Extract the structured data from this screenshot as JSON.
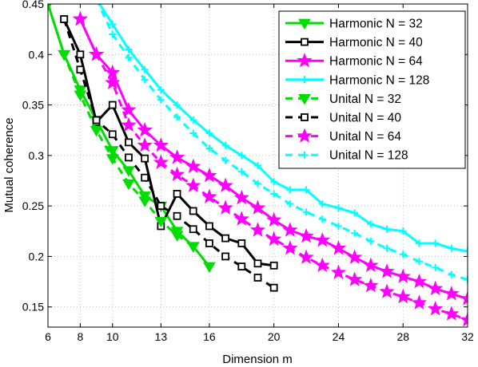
{
  "chart_data": {
    "type": "line",
    "title": "",
    "xlabel": "Dimension m",
    "ylabel": "Mutual coherence",
    "xlim": [
      6,
      32
    ],
    "ylim": [
      0.13,
      0.45
    ],
    "xticks": [
      6,
      8,
      10,
      13,
      16,
      20,
      24,
      28,
      32
    ],
    "yticks": [
      0.15,
      0.2,
      0.25,
      0.3,
      0.35,
      0.4,
      0.45
    ],
    "grid": true,
    "legend_position": "top-right",
    "series": [
      {
        "name": "Harmonic N = 32",
        "color": "#00dd00",
        "dash": "solid",
        "marker": "triangle-down",
        "x": [
          6,
          7,
          8,
          9,
          10,
          11,
          12,
          13,
          14,
          15,
          16
        ],
        "y": [
          0.45,
          0.4,
          0.365,
          0.335,
          0.305,
          0.285,
          0.26,
          0.25,
          0.225,
          0.21,
          0.19
        ]
      },
      {
        "name": "Harmonic N = 40",
        "color": "#000000",
        "dash": "solid",
        "marker": "square",
        "x": [
          7,
          8,
          9,
          10,
          11,
          12,
          13,
          14,
          15,
          16,
          17,
          18,
          19,
          20
        ],
        "y": [
          0.435,
          0.4,
          0.333,
          0.35,
          0.313,
          0.297,
          0.23,
          0.262,
          0.245,
          0.23,
          0.218,
          0.213,
          0.193,
          0.191
        ]
      },
      {
        "name": "Harmonic N = 64",
        "color": "#ff00ff",
        "dash": "solid",
        "marker": "star",
        "x": [
          8,
          9,
          10,
          11,
          12,
          13,
          14,
          15,
          16,
          17,
          18,
          19,
          20,
          21,
          22,
          23,
          24,
          25,
          26,
          27,
          28,
          29,
          30,
          31,
          32
        ],
        "y": [
          0.435,
          0.4,
          0.382,
          0.345,
          0.325,
          0.31,
          0.298,
          0.289,
          0.28,
          0.27,
          0.258,
          0.248,
          0.236,
          0.226,
          0.22,
          0.216,
          0.208,
          0.199,
          0.191,
          0.185,
          0.18,
          0.175,
          0.168,
          0.163,
          0.158
        ]
      },
      {
        "name": "Harmonic N = 128",
        "color": "#00ffff",
        "dash": "solid",
        "marker": "plus",
        "x": [
          9,
          10,
          11,
          12,
          13,
          14,
          15,
          16,
          17,
          18,
          19,
          20,
          21,
          22,
          23,
          24,
          25,
          26,
          27,
          28,
          29,
          30,
          31,
          32
        ],
        "y": [
          0.455,
          0.43,
          0.405,
          0.385,
          0.365,
          0.35,
          0.335,
          0.322,
          0.31,
          0.3,
          0.29,
          0.274,
          0.266,
          0.266,
          0.252,
          0.248,
          0.243,
          0.232,
          0.227,
          0.225,
          0.213,
          0.213,
          0.208,
          0.205
        ]
      },
      {
        "name": "Unital N = 32",
        "color": "#00dd00",
        "dash": "dashed",
        "marker": "triangle-down",
        "x": [
          6,
          7,
          8,
          9,
          10,
          11,
          12,
          13,
          14,
          15
        ],
        "y": [
          0.45,
          0.4,
          0.36,
          0.325,
          0.297,
          0.272,
          0.255,
          0.235,
          0.221,
          0.21
        ]
      },
      {
        "name": "Unital N = 40",
        "color": "#000000",
        "dash": "dashed",
        "marker": "square",
        "x": [
          7,
          8,
          9,
          10,
          11,
          12,
          13,
          14,
          15,
          16,
          17,
          18,
          19,
          20
        ],
        "y": [
          0.435,
          0.385,
          0.335,
          0.321,
          0.298,
          0.278,
          0.25,
          0.24,
          0.227,
          0.213,
          0.2,
          0.19,
          0.179,
          0.169
        ]
      },
      {
        "name": "Unital N = 64",
        "color": "#ff00ff",
        "dash": "dashed",
        "marker": "star",
        "x": [
          8,
          9,
          10,
          11,
          12,
          13,
          14,
          15,
          16,
          17,
          18,
          19,
          20,
          21,
          22,
          23,
          24,
          25,
          26,
          27,
          28,
          29,
          30,
          31,
          32
        ],
        "y": [
          0.435,
          0.4,
          0.372,
          0.33,
          0.31,
          0.293,
          0.281,
          0.27,
          0.259,
          0.248,
          0.237,
          0.226,
          0.217,
          0.208,
          0.199,
          0.191,
          0.184,
          0.177,
          0.171,
          0.165,
          0.16,
          0.154,
          0.148,
          0.143,
          0.137
        ]
      },
      {
        "name": "Unital N = 128",
        "color": "#00ffff",
        "dash": "dashed",
        "marker": "plus",
        "x": [
          9,
          10,
          11,
          12,
          13,
          14,
          15,
          16,
          17,
          18,
          19,
          20,
          21,
          22,
          23,
          24,
          25,
          26,
          27,
          28,
          29,
          30,
          31,
          32
        ],
        "y": [
          0.455,
          0.42,
          0.397,
          0.375,
          0.355,
          0.338,
          0.322,
          0.307,
          0.295,
          0.284,
          0.272,
          0.262,
          0.252,
          0.244,
          0.237,
          0.23,
          0.223,
          0.215,
          0.208,
          0.202,
          0.195,
          0.189,
          0.182,
          0.177
        ]
      }
    ]
  }
}
